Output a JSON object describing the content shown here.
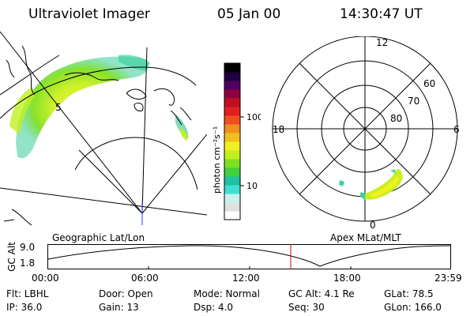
{
  "header": {
    "title": "Ultraviolet Imager",
    "date": "05 Jan 00",
    "time": "14:30:47 UT"
  },
  "colorbar": {
    "unit_label": "photon cm⁻²s⁻¹",
    "tick_100": "100",
    "tick_10": "10",
    "colors": [
      "#ffffff",
      "#e0e0e0",
      "#c8f0f0",
      "#40e0d0",
      "#20c0a0",
      "#40d040",
      "#80e020",
      "#c0f020",
      "#f0f020",
      "#f0c020",
      "#f09020",
      "#f05020",
      "#e02020",
      "#c01020",
      "#900040",
      "#500060",
      "#200040",
      "#000000"
    ]
  },
  "left_map": {
    "caption": "Geographic Lat/Lon",
    "lat_label": "5"
  },
  "polar_plot": {
    "caption": "Apex  MLat/MLT",
    "mlt_12": "12",
    "mlt_18": "18",
    "mlt_6": "6",
    "mlt_0": "0",
    "mlat_60": "60",
    "mlat_70": "70",
    "mlat_80": "80"
  },
  "orbit_plot": {
    "ylabel": "GC Alt",
    "y_max": "9.0",
    "y_min": "1.8",
    "times": [
      "00:00",
      "06:00",
      "12:00",
      "18:00",
      "23:59"
    ],
    "marker_time": "14:30:47"
  },
  "info": {
    "flt": "Flt: LBHL",
    "door": "Door: Open",
    "mode": "Mode: Normal",
    "gc_alt": "GC Alt: 4.1 Re",
    "glat": "GLat:  78.5",
    "ip": "IP: 36.0",
    "gain": "Gain: 13",
    "dsp": "Dsp:     4.0",
    "seq": "Seq: 30",
    "glon": "GLon: 166.0"
  }
}
